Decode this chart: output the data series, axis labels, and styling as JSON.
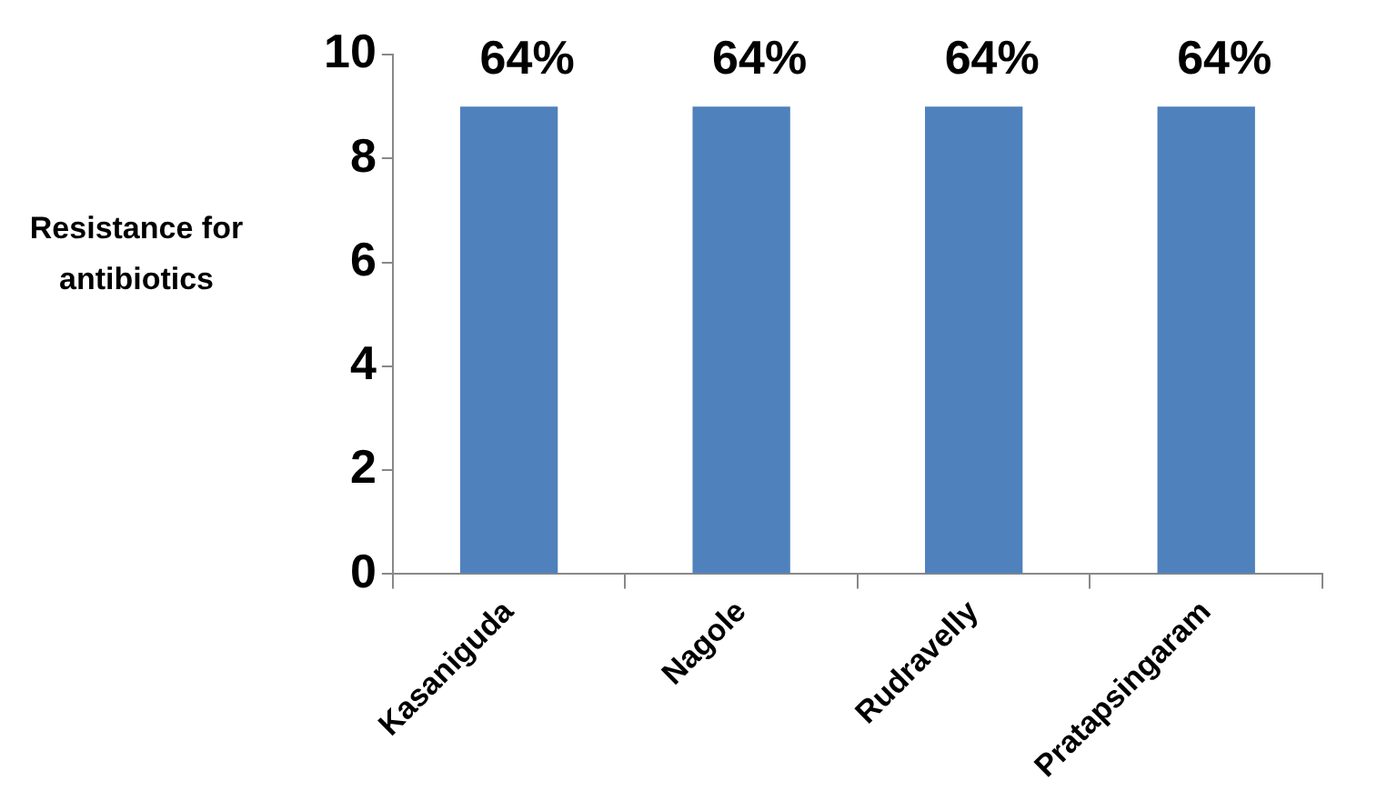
{
  "chart_data": {
    "type": "bar",
    "ylabel": "Resistance for antibiotics",
    "categories": [
      "Kasaniguda",
      "Nagole",
      "Rudravelly",
      "Pratapsingaram"
    ],
    "values": [
      9,
      9,
      9,
      9
    ],
    "color": "#4f81bd",
    "annotations": [
      "64%",
      "64%",
      "64%",
      "64%"
    ],
    "ylim": [
      0,
      10
    ],
    "yticks": [
      0,
      2,
      4,
      6,
      8,
      10
    ],
    "legend": false
  }
}
